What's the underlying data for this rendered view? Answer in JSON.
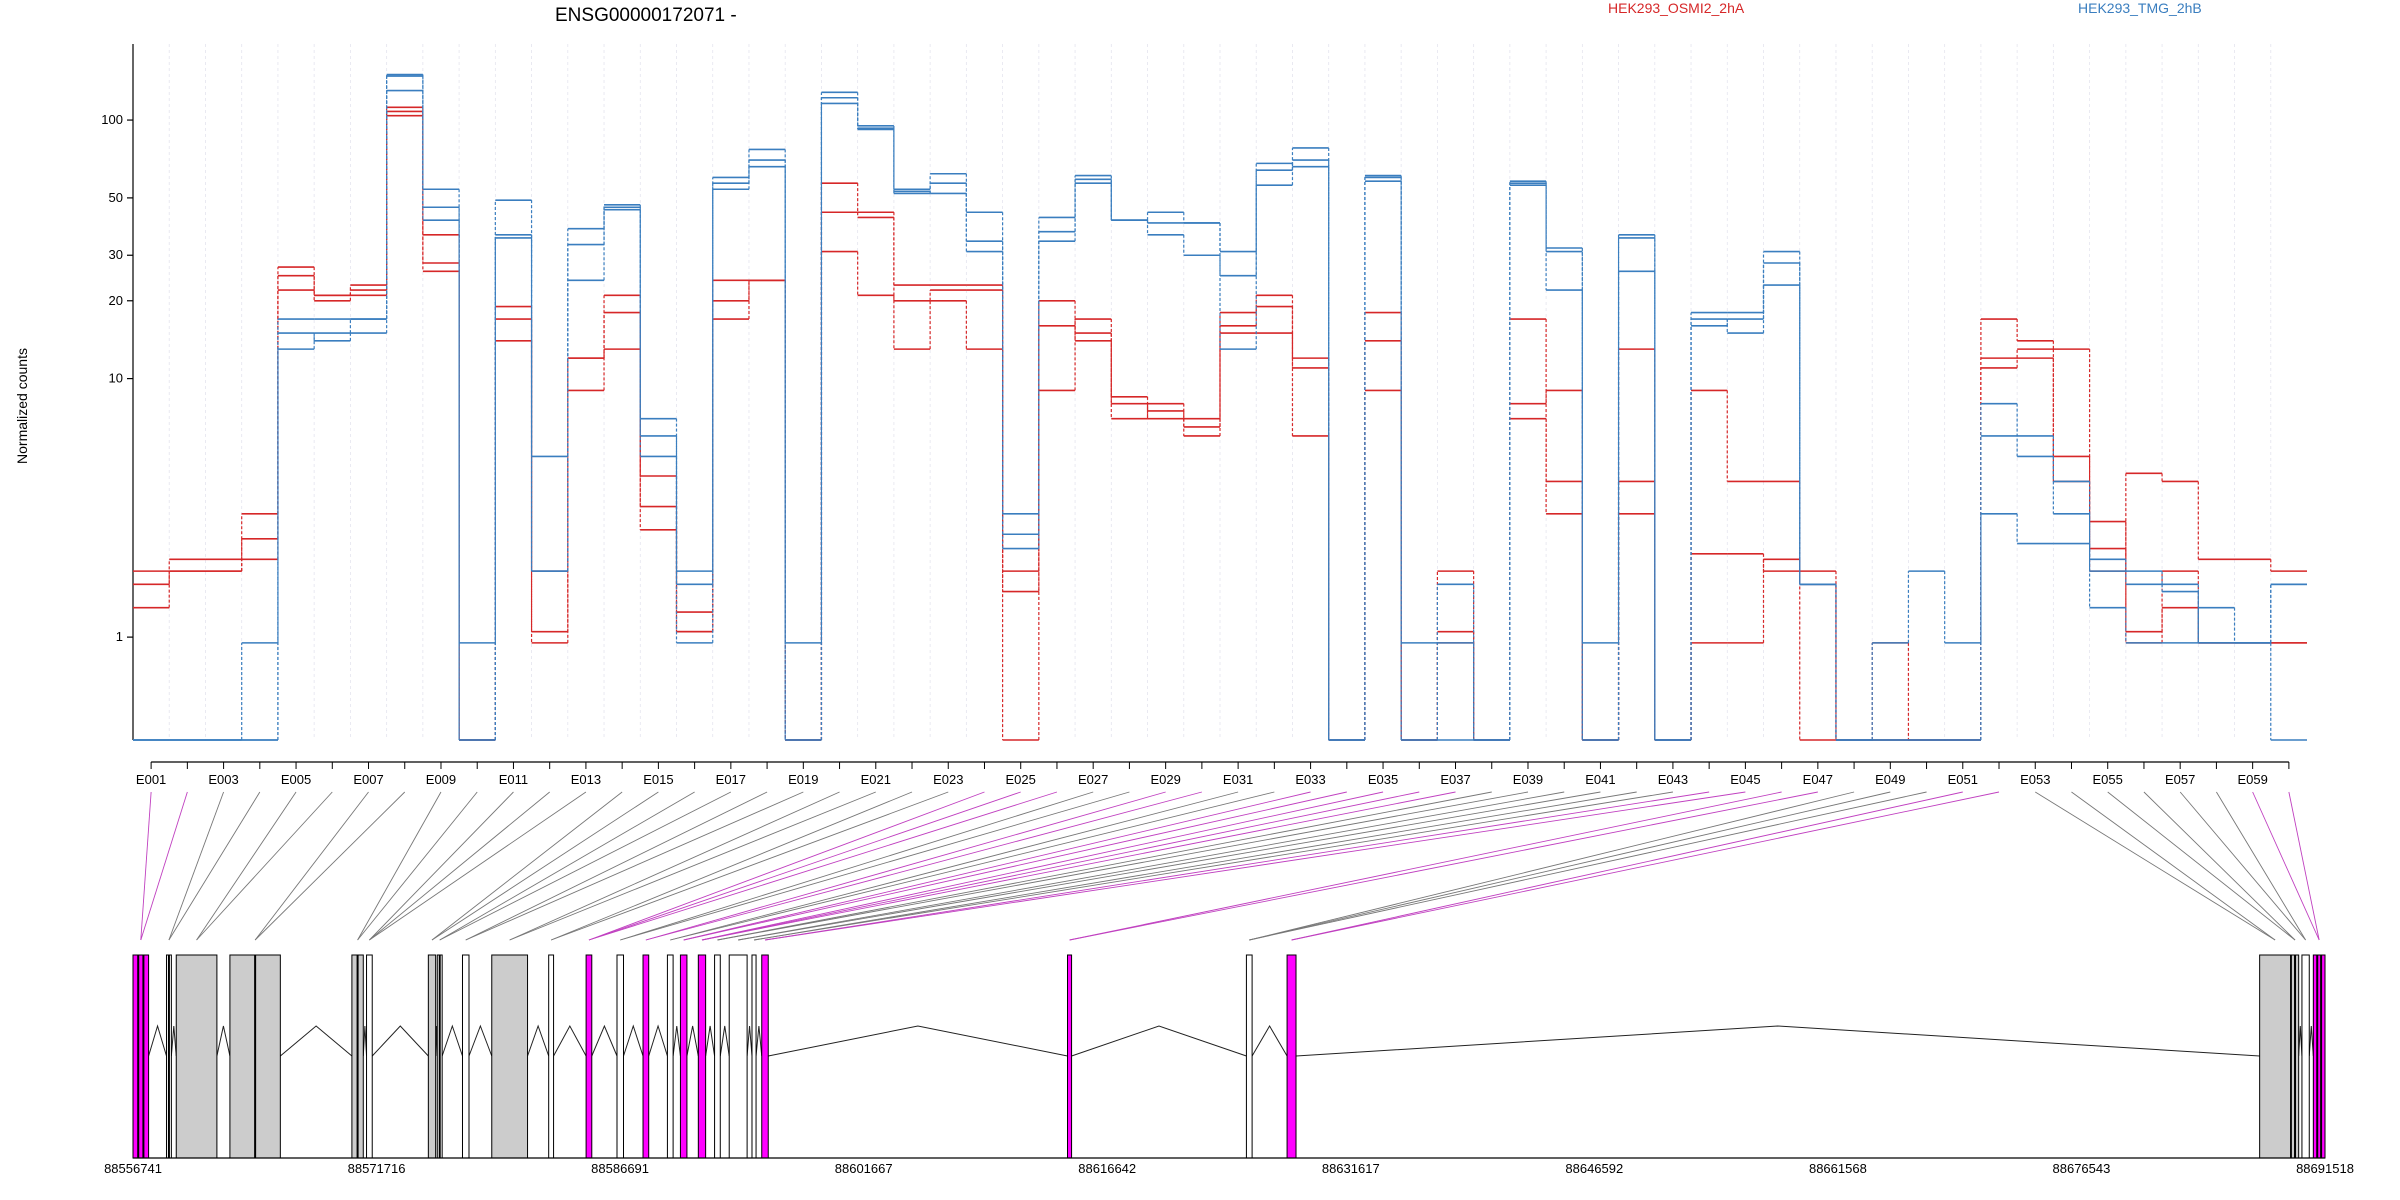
{
  "chart_data": {
    "type": "line",
    "title": "ENSG00000172071 -",
    "ylabel": "Normalized counts",
    "y_scale": "log",
    "ylim": [
      0.4,
      190
    ],
    "y_ticks": [
      1,
      10,
      20,
      30,
      50,
      100
    ],
    "grid_vertical": true,
    "legend": [
      {
        "label": "HEK293_OSMI2_2hA",
        "color": "#d62728"
      },
      {
        "label": "HEK293_TMG_2hB",
        "color": "#3a7ebf"
      }
    ],
    "exon_labels": [
      "E001",
      "E003",
      "E005",
      "E007",
      "E009",
      "E011",
      "E013",
      "E015",
      "E017",
      "E019",
      "E021",
      "E023",
      "E025",
      "E027",
      "E029",
      "E031",
      "E033",
      "E035",
      "E037",
      "E039",
      "E041",
      "E043",
      "E045",
      "E047",
      "E049",
      "E051",
      "E053",
      "E055",
      "E057",
      "E059"
    ],
    "exons": [
      "E001",
      "E002",
      "E003",
      "E004",
      "E005",
      "E006",
      "E007",
      "E008",
      "E009",
      "E010",
      "E011",
      "E012",
      "E013",
      "E014",
      "E015",
      "E016",
      "E017",
      "E018",
      "E019",
      "E020",
      "E021",
      "E022",
      "E023",
      "E024",
      "E025",
      "E026",
      "E027",
      "E028",
      "E029",
      "E030",
      "E031",
      "E032",
      "E033",
      "E034",
      "E035",
      "E036",
      "E037",
      "E038",
      "E039",
      "E040",
      "E041",
      "E042",
      "E043",
      "E044",
      "E045",
      "E046",
      "E047",
      "E048",
      "E049",
      "E050",
      "E051",
      "E052",
      "E053",
      "E054",
      "E055",
      "E056",
      "E057",
      "E058",
      "E059",
      "E060"
    ],
    "series": [
      {
        "group": "HEK293_OSMI2_2hA",
        "color": "#d62728",
        "values": [
          1.6,
          2.0,
          2.0,
          3.0,
          22,
          21,
          21,
          104,
          36,
          0.4,
          19,
          1.05,
          12,
          21,
          4.2,
          1.25,
          24,
          24,
          0.4,
          57,
          44,
          23,
          23,
          23,
          1.8,
          20,
          14,
          8,
          7,
          6.5,
          16,
          19,
          11,
          0.4,
          18,
          0.4,
          1.05,
          0.4,
          8,
          9,
          0.4,
          13,
          0.4,
          2.1,
          2.1,
          1.8,
          1.8,
          0.4,
          0.4,
          0.4,
          0.4,
          12,
          12,
          5,
          2.8,
          1.05,
          1.8,
          0.95,
          0.95,
          0.95
        ]
      },
      {
        "group": "HEK293_OSMI2_2hA",
        "color": "#d62728",
        "values": [
          1.3,
          1.8,
          1.8,
          2.4,
          25,
          21,
          23,
          112,
          28,
          0.4,
          17,
          0.95,
          12,
          18,
          3.2,
          1.05,
          20,
          24,
          0.4,
          44,
          42,
          20,
          22,
          22,
          1.5,
          16,
          15,
          8.5,
          7.5,
          7,
          18,
          21,
          12,
          0.4,
          14,
          0.4,
          0.95,
          0.4,
          7,
          4,
          0.4,
          4,
          0.4,
          0.95,
          0.95,
          2.0,
          1.6,
          0.4,
          0.95,
          0.4,
          0.4,
          11,
          13,
          4,
          2.2,
          0.95,
          1.3,
          0.95,
          0.95,
          0.95
        ]
      },
      {
        "group": "HEK293_OSMI2_2hA",
        "color": "#d62728",
        "values": [
          1.8,
          1.8,
          1.8,
          2.0,
          27,
          20,
          22,
          108,
          26,
          0.4,
          14,
          1.8,
          9,
          13,
          2.6,
          1.05,
          17,
          24,
          0.4,
          31,
          21,
          13,
          20,
          13,
          0.4,
          9,
          17,
          7,
          8,
          6,
          15,
          15,
          6,
          0.4,
          9,
          0.4,
          1.8,
          0.4,
          17,
          3,
          0.4,
          3,
          0.4,
          9,
          4,
          4,
          0.4,
          0.4,
          0.4,
          0.4,
          0.4,
          17,
          14,
          13,
          1.8,
          4.3,
          4,
          2.0,
          2.0,
          1.8
        ]
      },
      {
        "group": "HEK293_TMG_2hB",
        "color": "#3a7ebf",
        "values": [
          0.4,
          0.4,
          0.4,
          0.4,
          15,
          14,
          15,
          150,
          54,
          0.4,
          49,
          5,
          33,
          47,
          6,
          1.8,
          57,
          70,
          0.4,
          128,
          95,
          52,
          57,
          44,
          3,
          37,
          57,
          41,
          40,
          40,
          31,
          68,
          66,
          0.4,
          60,
          0.4,
          1.6,
          0.4,
          58,
          31,
          0.4,
          35,
          0.4,
          18,
          18,
          31,
          1.6,
          0.4,
          0.4,
          0.4,
          0.4,
          8,
          5,
          3,
          2.0,
          1.6,
          1.5,
          0.95,
          0.95,
          1.6
        ]
      },
      {
        "group": "HEK293_TMG_2hB",
        "color": "#3a7ebf",
        "values": [
          0.4,
          0.4,
          0.4,
          0.4,
          17,
          17,
          17,
          148,
          46,
          0.4,
          36,
          1.8,
          24,
          46,
          5,
          0.95,
          54,
          66,
          0.4,
          122,
          92,
          53,
          52,
          31,
          2.5,
          34,
          59,
          41,
          36,
          30,
          25,
          56,
          70,
          0.4,
          58,
          0.4,
          0.4,
          0.4,
          57,
          22,
          0.4,
          26,
          0.4,
          16,
          17,
          23,
          1.6,
          0.4,
          0.4,
          0.4,
          0.4,
          6,
          6,
          4,
          1.8,
          1.8,
          1.6,
          0.95,
          0.95,
          1.6
        ]
      },
      {
        "group": "HEK293_TMG_2hB",
        "color": "#3a7ebf",
        "values": [
          0.4,
          0.4,
          0.4,
          0.95,
          13,
          15,
          17,
          130,
          41,
          0.95,
          35,
          1.8,
          38,
          45,
          7,
          1.6,
          60,
          77,
          0.95,
          116,
          93,
          54,
          62,
          34,
          2.2,
          42,
          61,
          41,
          44,
          40,
          13,
          64,
          78,
          0.4,
          61,
          0.95,
          0.95,
          0.4,
          56,
          32,
          0.95,
          36,
          0.4,
          17,
          15,
          28,
          1.6,
          0.4,
          0.95,
          1.8,
          0.95,
          3,
          2.3,
          2.3,
          1.3,
          0.95,
          0.95,
          1.3,
          0.95,
          0.4
        ]
      }
    ],
    "genomic_ticks": [
      "88556741",
      "88571716",
      "88586691",
      "88601667",
      "88616642",
      "88631617",
      "88646592",
      "88661568",
      "88676543",
      "88691518"
    ],
    "gene_model": [
      {
        "start": 88556741,
        "end": 88557700,
        "fill": "#ff00ff",
        "ticks": 2
      },
      {
        "start": 88558800,
        "end": 88559100,
        "fill": "#ffffff",
        "ticks": 1
      },
      {
        "start": 88559400,
        "end": 88561900,
        "fill": "#cccccc",
        "ticks": 0
      },
      {
        "start": 88562700,
        "end": 88565800,
        "fill": "#cccccc",
        "ticks": 1
      },
      {
        "start": 88570200,
        "end": 88570900,
        "fill": "#cccccc",
        "ticks": 1
      },
      {
        "start": 88571100,
        "end": 88571450,
        "fill": "#ffffff",
        "ticks": 0
      },
      {
        "start": 88574900,
        "end": 88575350,
        "fill": "#cccccc",
        "ticks": 0
      },
      {
        "start": 88575450,
        "end": 88575750,
        "fill": "#ffffff",
        "ticks": 1
      },
      {
        "start": 88577000,
        "end": 88577400,
        "fill": "#ffffff",
        "ticks": 0
      },
      {
        "start": 88578800,
        "end": 88581000,
        "fill": "#cccccc",
        "ticks": 0
      },
      {
        "start": 88582300,
        "end": 88582600,
        "fill": "#ffffff",
        "ticks": 0
      },
      {
        "start": 88584600,
        "end": 88584950,
        "fill": "#ff00ff",
        "ticks": 0
      },
      {
        "start": 88586500,
        "end": 88586900,
        "fill": "#ffffff",
        "ticks": 0
      },
      {
        "start": 88588100,
        "end": 88588450,
        "fill": "#ff00ff",
        "ticks": 0
      },
      {
        "start": 88589600,
        "end": 88589950,
        "fill": "#ffffff",
        "ticks": 0
      },
      {
        "start": 88590400,
        "end": 88590800,
        "fill": "#ff00ff",
        "ticks": 0
      },
      {
        "start": 88591500,
        "end": 88591950,
        "fill": "#ff00ff",
        "ticks": 0
      },
      {
        "start": 88592500,
        "end": 88592850,
        "fill": "#ffffff",
        "ticks": 0
      },
      {
        "start": 88593400,
        "end": 88594500,
        "fill": "#ffffff",
        "ticks": 0
      },
      {
        "start": 88594800,
        "end": 88595050,
        "fill": "#ffffff",
        "ticks": 0
      },
      {
        "start": 88595400,
        "end": 88595800,
        "fill": "#ff00ff",
        "ticks": 0
      },
      {
        "start": 88614200,
        "end": 88614450,
        "fill": "#ff00ff",
        "ticks": 0
      },
      {
        "start": 88625200,
        "end": 88625550,
        "fill": "#ffffff",
        "ticks": 0
      },
      {
        "start": 88627700,
        "end": 88628250,
        "fill": "#ff00ff",
        "ticks": 0
      },
      {
        "start": 88687500,
        "end": 88689400,
        "fill": "#cccccc",
        "ticks": 0
      },
      {
        "start": 88689450,
        "end": 88689900,
        "fill": "#cccccc",
        "ticks": 1
      },
      {
        "start": 88690100,
        "end": 88690550,
        "fill": "#ffffff",
        "ticks": 0
      },
      {
        "start": 88690800,
        "end": 88691518,
        "fill": "#ff00ff",
        "ticks": 2
      }
    ]
  }
}
